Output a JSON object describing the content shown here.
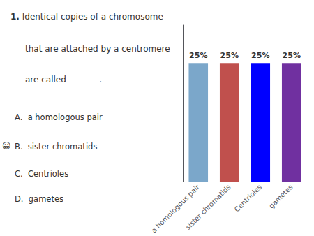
{
  "chart_data": {
    "type": "bar",
    "categories": [
      "a homologous pair",
      "sister chromatids",
      "Centrioles",
      "gametes"
    ],
    "values": [
      25,
      25,
      25,
      25
    ],
    "value_labels": [
      "25%",
      "25%",
      "25%",
      "25%"
    ],
    "colors": [
      "#7BA7CA",
      "#C0504D",
      "#0000FF",
      "#7030A0"
    ],
    "ylim": [
      0,
      33
    ],
    "data_labels": true,
    "tick_labels": "x",
    "grid": false,
    "annotations": [
      "1.",
      "Identical",
      "copies of a chromosome",
      "that are attached by a centromere",
      "are called ______  .",
      "😃",
      "A.  a homologous pair",
      "B.  sister chromatids",
      "C.  Centrioles",
      "D.  gametes"
    ]
  }
}
